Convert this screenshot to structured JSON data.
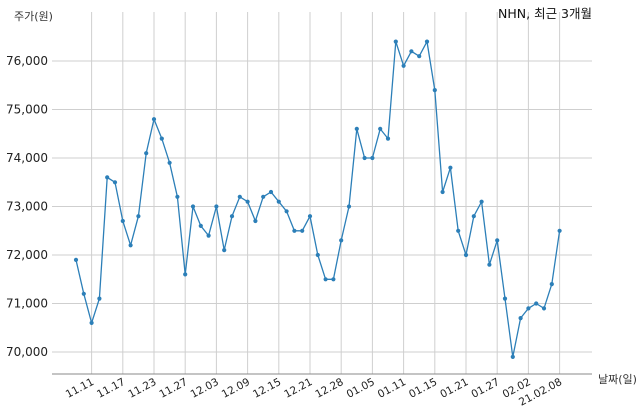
{
  "chart_data": {
    "type": "line",
    "title": "NHN, 최근 3개월",
    "ylabel": "주가(원)",
    "xlabel": "날짜(일)",
    "ylim": [
      69500,
      76900
    ],
    "yticks": [
      70000,
      71000,
      72000,
      73000,
      74000,
      75000,
      76000
    ],
    "ytick_labels": [
      "70,000",
      "71,000",
      "72,000",
      "73,000",
      "74,000",
      "75,000",
      "76,000"
    ],
    "xtick_labels": [
      "11.11",
      "11.17",
      "11.23",
      "11.27",
      "12.03",
      "12.09",
      "12.15",
      "12.21",
      "12.28",
      "01.05",
      "01.11",
      "01.15",
      "01.21",
      "01.27",
      "02.02",
      "21.02.08"
    ],
    "xtick_index": [
      2,
      6,
      10,
      14,
      18,
      22,
      26,
      30,
      34,
      38,
      42,
      46,
      50,
      54,
      58,
      62
    ],
    "grid": true,
    "line_color": "#2c7fb8",
    "series": [
      {
        "values": [
          71900,
          71200,
          70600,
          71100,
          73600,
          73500,
          72700,
          72200,
          72800,
          74100,
          74800,
          74400,
          73900,
          73200,
          71600,
          73000,
          72600,
          72400,
          73000,
          72100,
          72800,
          73200,
          73100,
          72700,
          73200,
          73300,
          73100,
          72900,
          72500,
          72500,
          72800,
          72000,
          71500,
          71500,
          72300,
          73000,
          74600,
          74000,
          74000,
          74600,
          74400,
          76400,
          75900,
          76200,
          76100,
          76400,
          75400,
          73300,
          73800,
          72500,
          72000,
          72800,
          73100,
          71800,
          72300,
          71100,
          69900,
          70700,
          70900,
          71000,
          70900,
          71400,
          72500
        ]
      }
    ]
  }
}
